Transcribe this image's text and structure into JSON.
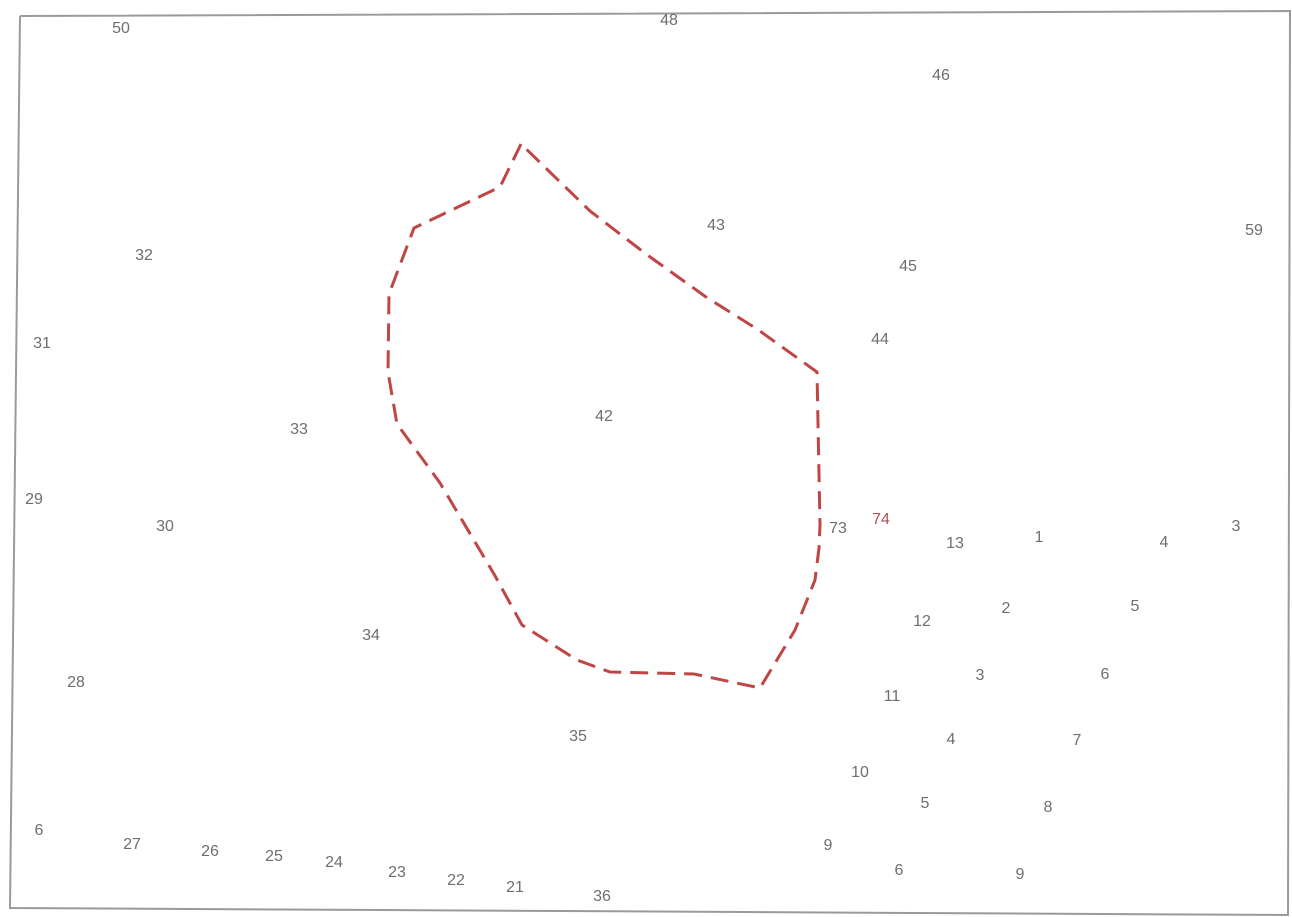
{
  "labels": [
    "50",
    "48",
    "46",
    "43",
    "59",
    "32",
    "45",
    "44",
    "31",
    "42",
    "33",
    "29",
    "30",
    "73",
    "74",
    "13",
    "1",
    "4",
    "3",
    "5",
    "2",
    "12",
    "34",
    "6",
    "3",
    "28",
    "11",
    "35",
    "4",
    "7",
    "10",
    "5",
    "8",
    "6",
    "27",
    "26",
    "25",
    "24",
    "23",
    "22",
    "21",
    "36",
    "9",
    "6",
    "9"
  ],
  "highlight_label_index": 14,
  "outline": {
    "color": "#c04545",
    "style": "dashed"
  }
}
